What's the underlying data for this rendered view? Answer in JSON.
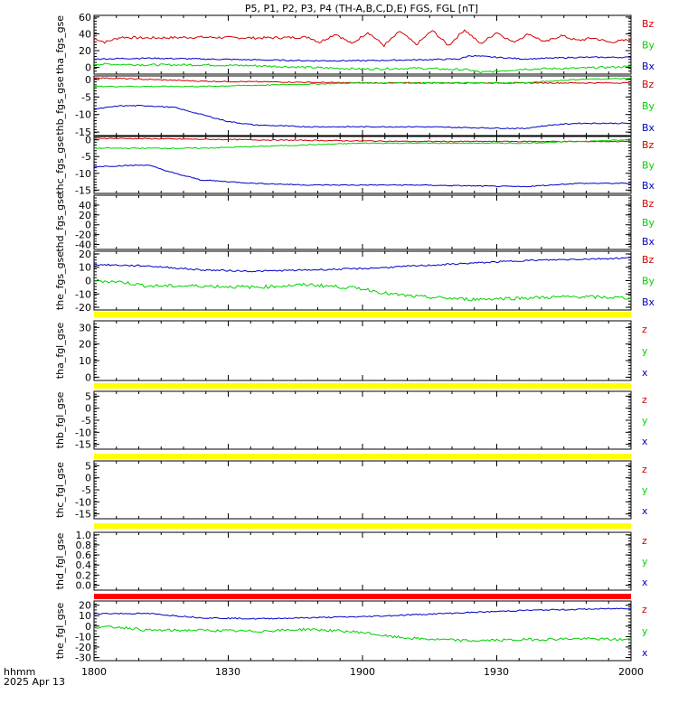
{
  "title": "P5, P1, P2, P3, P4 (TH-A,B,C,D,E) FGS, FGL [nT]",
  "x_axis": {
    "ticks": [
      "1800",
      "1830",
      "1900",
      "1930",
      "2000"
    ],
    "label_line1": "hhmm",
    "label_line2": "2025 Apr 13"
  },
  "colors": {
    "x": "#0000c8",
    "y": "#00d200",
    "z": "#d20000",
    "bar_yellow": "#ffff00",
    "bar_red": "#ff0000"
  },
  "chart_data": [
    {
      "type": "line",
      "id": "tha_fgs_gse",
      "ylabel": "tha_fgs_gse",
      "ylim": [
        -8,
        62
      ],
      "yticks": [
        "60",
        "40",
        "20",
        "0"
      ],
      "legend": [
        "Bz",
        "By",
        "Bx"
      ],
      "series": [
        {
          "name": "Bz",
          "component": "z",
          "x": [
            0,
            0.02,
            0.05,
            0.1,
            0.2,
            0.3,
            0.4,
            0.42,
            0.45,
            0.48,
            0.51,
            0.54,
            0.57,
            0.6,
            0.63,
            0.66,
            0.69,
            0.72,
            0.75,
            0.78,
            0.81,
            0.84,
            0.87,
            0.9,
            0.93,
            0.96,
            1.0
          ],
          "values": [
            35,
            30,
            36,
            35,
            36,
            35,
            36,
            30,
            40,
            28,
            42,
            26,
            43,
            27,
            44,
            26,
            45,
            28,
            42,
            30,
            40,
            30,
            38,
            32,
            35,
            30,
            33
          ],
          "osc": 3
        },
        {
          "name": "By",
          "component": "y",
          "x": [
            0,
            0.1,
            0.2,
            0.3,
            0.4,
            0.5,
            0.6,
            0.7,
            0.72,
            0.8,
            0.9,
            1.0
          ],
          "values": [
            4,
            3,
            3,
            2,
            0,
            -2,
            -1,
            -3,
            -6,
            -2,
            -1,
            1
          ],
          "osc": 2.5
        },
        {
          "name": "Bx",
          "component": "x",
          "x": [
            0,
            0.1,
            0.2,
            0.3,
            0.4,
            0.5,
            0.6,
            0.68,
            0.7,
            0.8,
            0.9,
            1.0
          ],
          "values": [
            10,
            11,
            10,
            9,
            8,
            8,
            9,
            10,
            14,
            10,
            12,
            12
          ],
          "osc": 1.5
        }
      ]
    },
    {
      "type": "line",
      "id": "thb_fgs_gse",
      "ylabel": "thb_fgs_gse",
      "ylim": [
        -16,
        1
      ],
      "yticks": [
        "0",
        "-5",
        "-10",
        "-15"
      ],
      "legend": [
        "Bz",
        "By",
        "Bx"
      ],
      "series": [
        {
          "name": "Bz",
          "component": "z",
          "x": [
            0,
            0.2,
            0.5,
            0.8,
            1.0
          ],
          "values": [
            0.5,
            -0.5,
            -1,
            -1,
            -1
          ],
          "osc": 0.3
        },
        {
          "name": "By",
          "component": "y",
          "x": [
            0,
            0.2,
            0.5,
            0.8,
            0.9,
            1.0
          ],
          "values": [
            -2,
            -2,
            -1,
            -1,
            0,
            0.3
          ],
          "osc": 0.3
        },
        {
          "name": "Bx",
          "component": "x",
          "x": [
            0,
            0.05,
            0.1,
            0.15,
            0.2,
            0.25,
            0.3,
            0.4,
            0.5,
            0.6,
            0.8,
            0.85,
            0.9,
            1.0
          ],
          "values": [
            -8.5,
            -7.5,
            -7.5,
            -8,
            -10,
            -12,
            -13,
            -13.5,
            -13.5,
            -13.5,
            -14,
            -13,
            -12.5,
            -12.5
          ],
          "osc": 0.3
        }
      ]
    },
    {
      "type": "line",
      "id": "thc_fgs_gse",
      "ylabel": "thc_fgs_gse",
      "ylim": [
        -16,
        1
      ],
      "yticks": [
        "0",
        "-5",
        "-10",
        "-15"
      ],
      "legend": [
        "Bz",
        "By",
        "Bx"
      ],
      "series": [
        {
          "name": "Bz",
          "component": "z",
          "x": [
            0,
            0.3,
            0.6,
            1.0
          ],
          "values": [
            0.5,
            0,
            -0.5,
            -0.5
          ],
          "osc": 0.3
        },
        {
          "name": "By",
          "component": "y",
          "x": [
            0,
            0.2,
            0.5,
            0.8,
            1.0
          ],
          "values": [
            -2.5,
            -2.5,
            -1,
            -1,
            0
          ],
          "osc": 0.3
        },
        {
          "name": "Bx",
          "component": "x",
          "x": [
            0,
            0.1,
            0.15,
            0.2,
            0.25,
            0.3,
            0.4,
            0.6,
            0.8,
            0.9,
            1.0
          ],
          "values": [
            -8,
            -7.5,
            -10,
            -12,
            -12.5,
            -13,
            -13.5,
            -13.5,
            -14,
            -13,
            -13
          ],
          "osc": 0.3
        }
      ]
    },
    {
      "type": "line",
      "id": "thd_fgs_gse",
      "ylabel": "thd_fgs_gse",
      "ylim": [
        -50,
        60
      ],
      "yticks": [
        "40",
        "20",
        "0",
        "-20",
        "-40"
      ],
      "legend": [
        "Bz",
        "By",
        "Bx"
      ],
      "series": []
    },
    {
      "type": "line",
      "id": "the_fgs_gse",
      "ylabel": "the_fgs_gse",
      "ylim": [
        -22,
        22
      ],
      "yticks": [
        "20",
        "10",
        "0",
        "-10",
        "-20"
      ],
      "legend": [
        "Bz",
        "By",
        "Bx"
      ],
      "series": [
        {
          "name": "By",
          "component": "y",
          "x": [
            0,
            0.05,
            0.1,
            0.2,
            0.3,
            0.4,
            0.5,
            0.55,
            0.6,
            0.7,
            0.8,
            0.9,
            1.0
          ],
          "values": [
            0,
            -1,
            -4,
            -4,
            -5,
            -3,
            -6,
            -10,
            -12,
            -14,
            -13,
            -12,
            -13
          ],
          "osc": 2.5
        },
        {
          "name": "Bx",
          "component": "x",
          "x": [
            0,
            0.1,
            0.2,
            0.3,
            0.4,
            0.5,
            0.6,
            0.7,
            0.8,
            0.9,
            1.0
          ],
          "values": [
            12,
            11,
            8,
            7,
            8,
            9,
            11,
            13,
            15,
            16,
            17
          ],
          "osc": 1.2
        }
      ]
    },
    {
      "type": "line",
      "id": "tha_fgl_gse",
      "ylabel": "tha_fgl_gse",
      "ylim": [
        -2,
        34
      ],
      "yticks": [
        "30",
        "20",
        "10",
        "0"
      ],
      "legend": [
        "z",
        "y",
        "x"
      ],
      "bar": "yellow",
      "series": []
    },
    {
      "type": "line",
      "id": "thb_fgl_gse",
      "ylabel": "thb_fgl_gse",
      "ylim": [
        -17,
        7
      ],
      "yticks": [
        "5",
        "0",
        "-5",
        "-10",
        "-15"
      ],
      "legend": [
        "z",
        "y",
        "x"
      ],
      "bar": "yellow",
      "series": []
    },
    {
      "type": "line",
      "id": "thc_fgl_gse",
      "ylabel": "thc_fgl_gse",
      "ylim": [
        -17,
        7
      ],
      "yticks": [
        "5",
        "0",
        "-5",
        "-10",
        "-15"
      ],
      "legend": [
        "z",
        "y",
        "x"
      ],
      "bar": "yellow",
      "series": []
    },
    {
      "type": "line",
      "id": "thd_fgl_gse",
      "ylabel": "thd_fgl_gse",
      "ylim": [
        -0.1,
        1.05
      ],
      "yticks": [
        "1.0",
        "0.8",
        "0.6",
        "0.4",
        "0.2",
        "0.0"
      ],
      "legend": [
        "z",
        "y",
        "x"
      ],
      "bar": "yellow",
      "series": []
    },
    {
      "type": "line",
      "id": "the_fgl_gse",
      "ylabel": "the_fgl_gse",
      "ylim": [
        -33,
        24
      ],
      "yticks": [
        "20",
        "10",
        "0",
        "-10",
        "-20",
        "-30"
      ],
      "legend": [
        "z",
        "y",
        "x"
      ],
      "bar": "red",
      "series": [
        {
          "name": "y",
          "component": "y",
          "x": [
            0,
            0.05,
            0.1,
            0.2,
            0.3,
            0.4,
            0.5,
            0.55,
            0.6,
            0.7,
            0.8,
            0.9,
            1.0
          ],
          "values": [
            -1,
            -1,
            -4,
            -4,
            -5,
            -3,
            -6,
            -10,
            -12,
            -14,
            -13,
            -12,
            -13
          ],
          "osc": 2.5
        },
        {
          "name": "x",
          "component": "x",
          "x": [
            0,
            0.1,
            0.2,
            0.3,
            0.4,
            0.5,
            0.6,
            0.7,
            0.8,
            0.9,
            1.0
          ],
          "values": [
            12,
            12,
            8,
            7,
            8,
            9,
            11,
            13,
            15,
            16,
            17
          ],
          "osc": 1.2
        }
      ]
    }
  ]
}
